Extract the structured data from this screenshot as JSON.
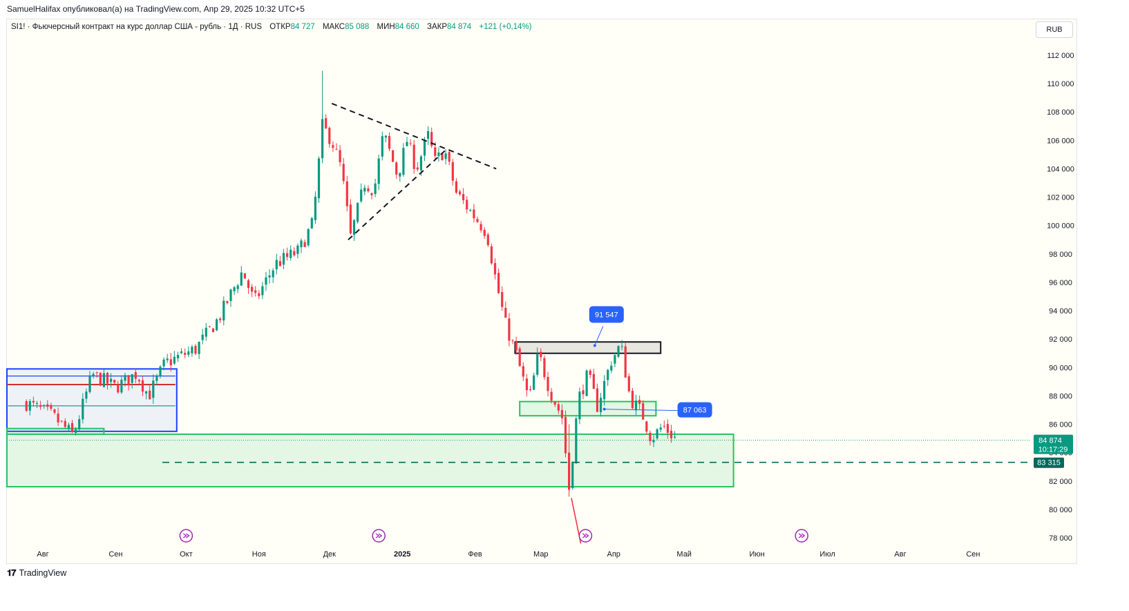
{
  "header": {
    "publisher_line": "SamuelHalifax опубликовал(а) на TradingView.com, Апр 29, 2025 10:32 UTC+5",
    "symbol_line": "SI1! · Фьючерсный контракт на курс доллар США - рубль · 1Д · RUS",
    "open_label": "ОТКР",
    "open_value": "84 727",
    "high_label": "МАКС",
    "high_value": "85 088",
    "low_label": "МИН",
    "low_value": "84 660",
    "close_label": "ЗАКР",
    "close_value": "84 874",
    "change": "+121 (+0,14%)",
    "currency": "RUB"
  },
  "footer": {
    "brand": "TradingView"
  },
  "colors": {
    "up": "#089981",
    "down": "#f23645",
    "zone_green": "#22c55e",
    "zone_blue": "#1e40ff",
    "label_blue": "#2962ff"
  },
  "chart_data": {
    "type": "candlestick",
    "ylim": [
      77000,
      113000
    ],
    "y_ticks": [
      112000,
      110000,
      108000,
      106000,
      104000,
      102000,
      100000,
      98000,
      96000,
      94000,
      92000,
      90000,
      88000,
      86000,
      84000,
      82000,
      80000,
      78000
    ],
    "y_tick_labels": [
      "112 000",
      "110 000",
      "108 000",
      "106 000",
      "104 000",
      "102 000",
      "100 000",
      "98 000",
      "96 000",
      "94 000",
      "92 000",
      "90 000",
      "88 000",
      "86 000",
      "84 000",
      "82 000",
      "80 000",
      "78 000"
    ],
    "x_labels": [
      "Авг",
      "Сен",
      "Окт",
      "Ноя",
      "Дек",
      "2025",
      "Фев",
      "Мар",
      "Апр",
      "Май",
      "Июн",
      "Июл",
      "Авг",
      "Сен"
    ],
    "waypoints": [
      [
        "2024-07-25",
        87500
      ],
      [
        "2024-08-05",
        86600
      ],
      [
        "2024-08-14",
        85200
      ],
      [
        "2024-08-22",
        89500
      ],
      [
        "2024-09-01",
        88600
      ],
      [
        "2024-09-10",
        89600
      ],
      [
        "2024-09-15",
        88000
      ],
      [
        "2024-09-22",
        90300
      ],
      [
        "2024-10-05",
        91300
      ],
      [
        "2024-10-15",
        93500
      ],
      [
        "2024-10-25",
        96800
      ],
      [
        "2024-10-30",
        94600
      ],
      [
        "2024-11-08",
        97300
      ],
      [
        "2024-11-18",
        98200
      ],
      [
        "2024-11-24",
        100200
      ],
      [
        "2024-11-28",
        107000
      ],
      [
        "2024-12-02",
        106000
      ],
      [
        "2024-12-06",
        104000
      ],
      [
        "2024-12-10",
        99200
      ],
      [
        "2024-12-16",
        103000
      ],
      [
        "2024-12-20",
        102500
      ],
      [
        "2024-12-24",
        106500
      ],
      [
        "2024-12-30",
        103500
      ],
      [
        "2025-01-03",
        106000
      ],
      [
        "2025-01-07",
        104000
      ],
      [
        "2025-01-12",
        106300
      ],
      [
        "2025-01-15",
        104500
      ],
      [
        "2025-01-19",
        105300
      ],
      [
        "2025-01-24",
        102300
      ],
      [
        "2025-01-31",
        100800
      ],
      [
        "2025-02-06",
        99500
      ],
      [
        "2025-02-10",
        96000
      ],
      [
        "2025-02-14",
        93000
      ],
      [
        "2025-02-18",
        91200
      ],
      [
        "2025-02-24",
        87600
      ],
      [
        "2025-02-28",
        91000
      ],
      [
        "2025-03-05",
        88300
      ],
      [
        "2025-03-10",
        86500
      ],
      [
        "2025-03-13",
        81500
      ],
      [
        "2025-03-17",
        87800
      ],
      [
        "2025-03-21",
        89500
      ],
      [
        "2025-03-25",
        87300
      ],
      [
        "2025-03-31",
        90500
      ],
      [
        "2025-04-04",
        91600
      ],
      [
        "2025-04-08",
        87800
      ],
      [
        "2025-04-13",
        86800
      ],
      [
        "2025-04-17",
        85000
      ],
      [
        "2025-04-22",
        85900
      ],
      [
        "2025-04-28",
        84874
      ]
    ],
    "last_price": 84874,
    "last_price_label": "84 874",
    "countdown": "10:17:29",
    "target_price": 83315,
    "target_price_label": "83 315",
    "callouts": [
      {
        "text": "91 547",
        "date": "2025-03-21",
        "value": 91547
      },
      {
        "text": "87 063",
        "date": "2025-03-28",
        "value": 87063
      }
    ],
    "zones": [
      {
        "name": "demand-zone-large",
        "color": "green",
        "from": "2024-07-15",
        "to": "2025-05-22",
        "low": 81600,
        "high": 85300
      },
      {
        "name": "demand-zone-small",
        "color": "green",
        "from": "2025-02-20",
        "to": "2025-04-19",
        "low": 86600,
        "high": 87600
      },
      {
        "name": "resistance-zone",
        "color": "black",
        "from": "2025-02-18",
        "to": "2025-04-21",
        "low": 91000,
        "high": 91800
      },
      {
        "name": "range-box",
        "color": "blue",
        "from": "2024-07-15",
        "to": "2024-09-27",
        "low": 85500,
        "high": 89900
      },
      {
        "name": "support-box-left",
        "color": "green",
        "from": "2024-07-15",
        "to": "2024-08-27",
        "low": 85300,
        "high": 85700
      }
    ],
    "range_levels": [
      89400,
      88800,
      87300
    ],
    "trendlines": [
      {
        "from": [
          "2024-12-02",
          108600
        ],
        "to": [
          "2025-02-10",
          104000
        ],
        "style": "dashed"
      },
      {
        "from": [
          "2024-12-09",
          99000
        ],
        "to": [
          "2025-01-20",
          105400
        ],
        "style": "dashed"
      }
    ],
    "event_markers": [
      "2024-10-01",
      "2024-12-22",
      "2025-03-20",
      "2025-06-20"
    ]
  }
}
